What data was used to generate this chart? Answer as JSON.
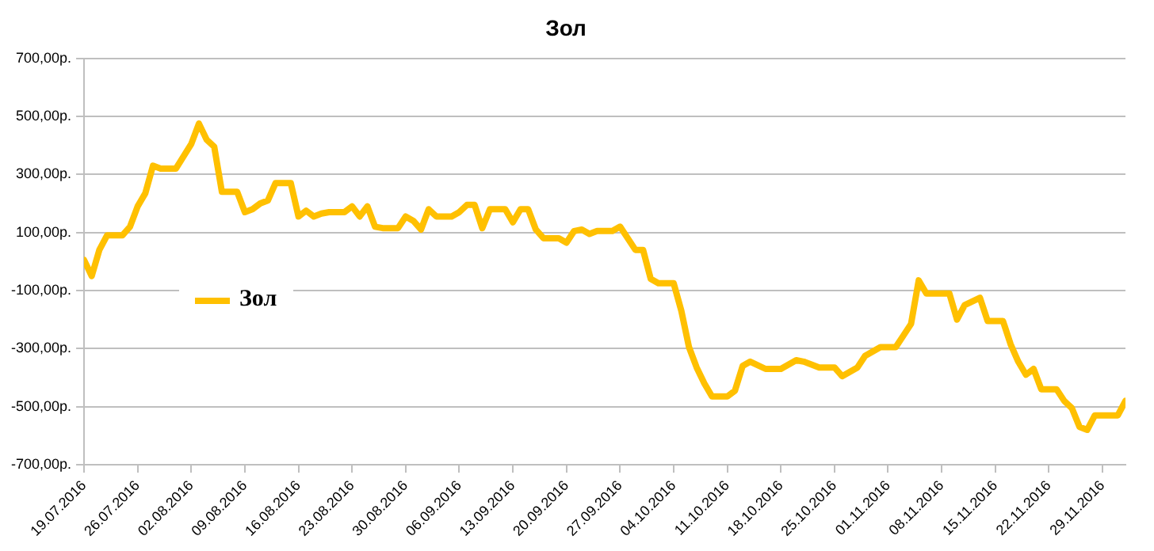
{
  "chart_data": {
    "type": "line",
    "title": "Зол",
    "x": [
      "2016-07-19",
      "2016-07-20",
      "2016-07-21",
      "2016-07-22",
      "2016-07-24",
      "2016-07-25",
      "2016-07-26",
      "2016-07-27",
      "2016-07-28",
      "2016-07-29",
      "2016-07-31",
      "2016-08-02",
      "2016-08-03",
      "2016-08-04",
      "2016-08-05",
      "2016-08-06",
      "2016-08-08",
      "2016-08-09",
      "2016-08-10",
      "2016-08-11",
      "2016-08-12",
      "2016-08-13",
      "2016-08-15",
      "2016-08-16",
      "2016-08-17",
      "2016-08-18",
      "2016-08-19",
      "2016-08-20",
      "2016-08-22",
      "2016-08-23",
      "2016-08-24",
      "2016-08-25",
      "2016-08-26",
      "2016-08-27",
      "2016-08-29",
      "2016-08-30",
      "2016-08-31",
      "2016-09-01",
      "2016-09-02",
      "2016-09-03",
      "2016-09-05",
      "2016-09-06",
      "2016-09-07",
      "2016-09-08",
      "2016-09-09",
      "2016-09-10",
      "2016-09-12",
      "2016-09-13",
      "2016-09-14",
      "2016-09-15",
      "2016-09-16",
      "2016-09-17",
      "2016-09-19",
      "2016-09-20",
      "2016-09-21",
      "2016-09-22",
      "2016-09-23",
      "2016-09-24",
      "2016-09-26",
      "2016-09-27",
      "2016-09-29",
      "2016-09-30",
      "2016-10-01",
      "2016-10-02",
      "2016-10-04",
      "2016-10-05",
      "2016-10-06",
      "2016-10-07",
      "2016-10-08",
      "2016-10-09",
      "2016-10-11",
      "2016-10-12",
      "2016-10-13",
      "2016-10-14",
      "2016-10-16",
      "2016-10-18",
      "2016-10-20",
      "2016-10-21",
      "2016-10-22",
      "2016-10-23",
      "2016-10-25",
      "2016-10-26",
      "2016-10-28",
      "2016-10-29",
      "2016-10-31",
      "2016-11-02",
      "2016-11-03",
      "2016-11-04",
      "2016-11-05",
      "2016-11-06",
      "2016-11-09",
      "2016-11-10",
      "2016-11-11",
      "2016-11-13",
      "2016-11-14",
      "2016-11-16",
      "2016-11-17",
      "2016-11-18",
      "2016-11-19",
      "2016-11-20",
      "2016-11-21",
      "2016-11-23",
      "2016-11-24",
      "2016-11-25",
      "2016-11-26",
      "2016-11-27",
      "2016-11-28",
      "2016-12-01",
      "2016-12-02"
    ],
    "series": [
      {
        "name": "Зол",
        "color": "#ffc000",
        "values": [
          5,
          -50,
          40,
          90,
          90,
          120,
          190,
          235,
          330,
          320,
          320,
          405,
          475,
          420,
          395,
          240,
          240,
          170,
          180,
          200,
          210,
          270,
          270,
          155,
          175,
          155,
          165,
          170,
          170,
          190,
          155,
          190,
          120,
          115,
          115,
          155,
          140,
          110,
          180,
          155,
          155,
          170,
          195,
          195,
          115,
          180,
          180,
          135,
          180,
          180,
          110,
          80,
          80,
          65,
          105,
          110,
          95,
          105,
          105,
          120,
          40,
          40,
          -60,
          -75,
          -75,
          -170,
          -295,
          -365,
          -420,
          -465,
          -465,
          -445,
          -360,
          -345,
          -370,
          -370,
          -340,
          -345,
          -355,
          -365,
          -365,
          -395,
          -365,
          -325,
          -295,
          -295,
          -255,
          -215,
          -65,
          -110,
          -110,
          -200,
          -150,
          -125,
          -205,
          -205,
          -285,
          -345,
          -390,
          -370,
          -440,
          -440,
          -480,
          -505,
          -570,
          -580,
          -530,
          -530,
          -480
        ]
      }
    ],
    "xlim": [
      "2016-07-19",
      "2016-12-02"
    ],
    "xticks": [
      {
        "value": "2016-07-19",
        "label": "19.07.2016"
      },
      {
        "value": "2016-07-26",
        "label": "26.07.2016"
      },
      {
        "value": "2016-08-02",
        "label": "02.08.2016"
      },
      {
        "value": "2016-08-09",
        "label": "09.08.2016"
      },
      {
        "value": "2016-08-16",
        "label": "16.08.2016"
      },
      {
        "value": "2016-08-23",
        "label": "23.08.2016"
      },
      {
        "value": "2016-08-30",
        "label": "30.08.2016"
      },
      {
        "value": "2016-09-06",
        "label": "06.09.2016"
      },
      {
        "value": "2016-09-13",
        "label": "13.09.2016"
      },
      {
        "value": "2016-09-20",
        "label": "20.09.2016"
      },
      {
        "value": "2016-09-27",
        "label": "27.09.2016"
      },
      {
        "value": "2016-10-04",
        "label": "04.10.2016"
      },
      {
        "value": "2016-10-11",
        "label": "11.10.2016"
      },
      {
        "value": "2016-10-18",
        "label": "18.10.2016"
      },
      {
        "value": "2016-10-25",
        "label": "25.10.2016"
      },
      {
        "value": "2016-11-01",
        "label": "01.11.2016"
      },
      {
        "value": "2016-11-08",
        "label": "08.11.2016"
      },
      {
        "value": "2016-11-15",
        "label": "15.11.2016"
      },
      {
        "value": "2016-11-22",
        "label": "22.11.2016"
      },
      {
        "value": "2016-11-29",
        "label": "29.11.2016"
      }
    ],
    "ylim": [
      -700,
      700
    ],
    "yticks": [
      {
        "value": -700,
        "label": "-700,00р."
      },
      {
        "value": -500,
        "label": "-500,00р."
      },
      {
        "value": -300,
        "label": "-300,00р."
      },
      {
        "value": -100,
        "label": "-100,00р."
      },
      {
        "value": 100,
        "label": "100,00р."
      },
      {
        "value": 300,
        "label": "300,00р."
      },
      {
        "value": 500,
        "label": "500,00р."
      },
      {
        "value": 700,
        "label": "700,00р."
      }
    ],
    "grid": "y",
    "legend": "left",
    "marker": "none",
    "line_style": "solid"
  }
}
